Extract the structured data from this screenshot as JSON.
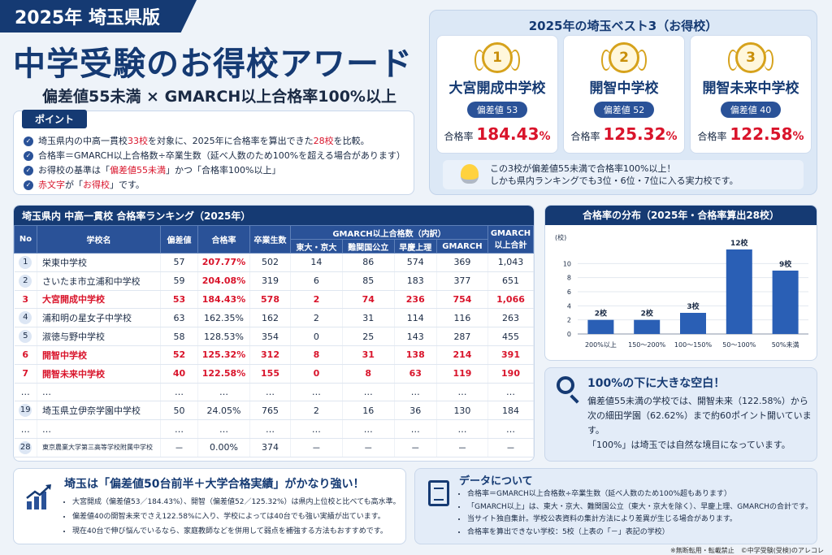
{
  "header": {
    "year_badge": "2025年 埼玉県版",
    "title": "中学受験のお得校アワード",
    "subtitle": "偏差値55未満 × GMARCH以上合格率100%以上"
  },
  "points": {
    "tag": "ポイント",
    "items": [
      {
        "a": "埼玉県内の中高一貫校",
        "b": "33校",
        "c": "を対象に、2025年に合格率を算出できた",
        "d": "28校",
        "e": "を比較。"
      },
      {
        "a": "合格率＝GMARCH以上合格数÷卒業生数",
        "b": "",
        "c": "（延べ人数のため100%を超える場合があります）",
        "d": "",
        "e": ""
      },
      {
        "a": "お得校の基準は「",
        "b": "偏差値55未満",
        "c": "」かつ「合格率100%以上」",
        "d": "",
        "e": ""
      },
      {
        "a": "",
        "b": "赤文字",
        "c": "が「",
        "d": "お得校",
        "e": "」です。"
      }
    ]
  },
  "best3": {
    "title": "2025年の埼玉ベスト3（お得校）",
    "rate_label": "合格率",
    "schools": [
      {
        "rank": "1",
        "name": "大宮開成中学校",
        "deviation": "偏差値 53",
        "rate": "184.43",
        "unit": "%"
      },
      {
        "rank": "2",
        "name": "開智中学校",
        "deviation": "偏差値 52",
        "rate": "125.32",
        "unit": "%"
      },
      {
        "rank": "3",
        "name": "開智未来中学校",
        "deviation": "偏差値 40",
        "rate": "122.58",
        "unit": "%"
      }
    ],
    "note_line1": "この3校が偏差値55未満で合格率100%以上！",
    "note_line2": "しかも県内ランキングでも3位・6位・7位に入る実力校です。"
  },
  "ranking": {
    "title": "埼玉県内 中高一貫校 合格率ランキング（2025年）",
    "headers": {
      "no": "No",
      "school": "学校名",
      "deviation": "偏差値",
      "rate": "合格率",
      "grads": "卒業生数",
      "group": "GMARCH以上合格数（内訳）",
      "todai": "東大・京大",
      "nankan": "難関国公立",
      "soukei": "早慶上理",
      "gmarch": "GMARCH",
      "total": "GMARCH以上合計"
    },
    "rows": [
      {
        "no": "1",
        "name": "栄東中学校",
        "dev": "57",
        "rate": "207.77%",
        "grads": "502",
        "t": "14",
        "n": "86",
        "s": "574",
        "g": "369",
        "total": "1,043",
        "hi": false
      },
      {
        "no": "2",
        "name": "さいたま市立浦和中学校",
        "dev": "59",
        "rate": "204.08%",
        "grads": "319",
        "t": "6",
        "n": "85",
        "s": "183",
        "g": "377",
        "total": "651",
        "hi": false
      },
      {
        "no": "3",
        "name": "大宮開成中学校",
        "dev": "53",
        "rate": "184.43%",
        "grads": "578",
        "t": "2",
        "n": "74",
        "s": "236",
        "g": "754",
        "total": "1,066",
        "hi": true
      },
      {
        "no": "4",
        "name": "浦和明の星女子中学校",
        "dev": "63",
        "rate": "162.35%",
        "grads": "162",
        "t": "2",
        "n": "31",
        "s": "114",
        "g": "116",
        "total": "263",
        "hi": false
      },
      {
        "no": "5",
        "name": "淑徳与野中学校",
        "dev": "58",
        "rate": "128.53%",
        "grads": "354",
        "t": "0",
        "n": "25",
        "s": "143",
        "g": "287",
        "total": "455",
        "hi": false
      },
      {
        "no": "6",
        "name": "開智中学校",
        "dev": "52",
        "rate": "125.32%",
        "grads": "312",
        "t": "8",
        "n": "31",
        "s": "138",
        "g": "214",
        "total": "391",
        "hi": true
      },
      {
        "no": "7",
        "name": "開智未来中学校",
        "dev": "40",
        "rate": "122.58%",
        "grads": "155",
        "t": "0",
        "n": "8",
        "s": "63",
        "g": "119",
        "total": "190",
        "hi": true
      },
      {
        "no": "…",
        "name": "…",
        "dev": "…",
        "rate": "…",
        "grads": "…",
        "t": "…",
        "n": "…",
        "s": "…",
        "g": "…",
        "total": "…",
        "hi": false
      },
      {
        "no": "19",
        "name": "埼玉県立伊奈学園中学校",
        "dev": "50",
        "rate": "24.05%",
        "grads": "765",
        "t": "2",
        "n": "16",
        "s": "36",
        "g": "130",
        "total": "184",
        "hi": false
      },
      {
        "no": "…",
        "name": "…",
        "dev": "…",
        "rate": "…",
        "grads": "…",
        "t": "…",
        "n": "…",
        "s": "…",
        "g": "…",
        "total": "…",
        "hi": false
      },
      {
        "no": "28",
        "name": "東京農業大学第三高等学校附属中学校",
        "dev": "－",
        "rate": "0.00%",
        "grads": "374",
        "t": "－",
        "n": "－",
        "s": "－",
        "g": "－",
        "total": "－",
        "hi": false
      }
    ]
  },
  "chart_data": {
    "type": "bar",
    "title": "合格率の分布（2025年・合格率算出28校）",
    "ylabel": "(校)",
    "ylim": [
      0,
      12
    ],
    "yticks": [
      0,
      2,
      4,
      6,
      8,
      10
    ],
    "categories": [
      "200%以上",
      "150〜200%",
      "100〜150%",
      "50〜100%",
      "50%未満"
    ],
    "values": [
      2,
      2,
      3,
      12,
      9
    ],
    "data_labels": [
      "2校",
      "2校",
      "3校",
      "12校",
      "9校"
    ],
    "color": "#2a5fb5",
    "grid": true
  },
  "gap": {
    "title": "100%の下に大きな空白！",
    "line1": "偏差値55未満の学校では、開智未来（122.58%）から",
    "line2": "次の細田学園（62.62%）まで約60ポイント開いています。",
    "line3": "「100%」は埼玉では自然な境目になっています。"
  },
  "saitama": {
    "title": "埼玉は「偏差値50台前半＋大学合格実績」がかなり強い！",
    "items": [
      "大宮開成（偏差値53／184.43%）、開智（偏差値52／125.32%）は県内上位校と比べても高水準。",
      "偏差値40の開智未来でさえ122.58%に入り、学校によっては40台でも強い実績が出ています。",
      "現在40台で伸び悩んでいるなら、家庭教師などを併用して弱点を補強する方法もおすすめです。"
    ]
  },
  "about": {
    "title": "データについて",
    "items": [
      "合格率＝GMARCH以上合格数÷卒業生数（延べ人数のため100%超もあります）",
      "「GMARCH以上」は、東大・京大、難関国公立（東大・京大を除く）、早慶上理、GMARCHの合計です。",
      "当サイト独自集計。学校公表資料の集計方法により差異が生じる場合があります。",
      "合格率を算出できない学校：5校（上表の「－」表記の学校）"
    ]
  },
  "footer": "※無断転用・転載禁止　©中学受験(受検)のアレコレ"
}
